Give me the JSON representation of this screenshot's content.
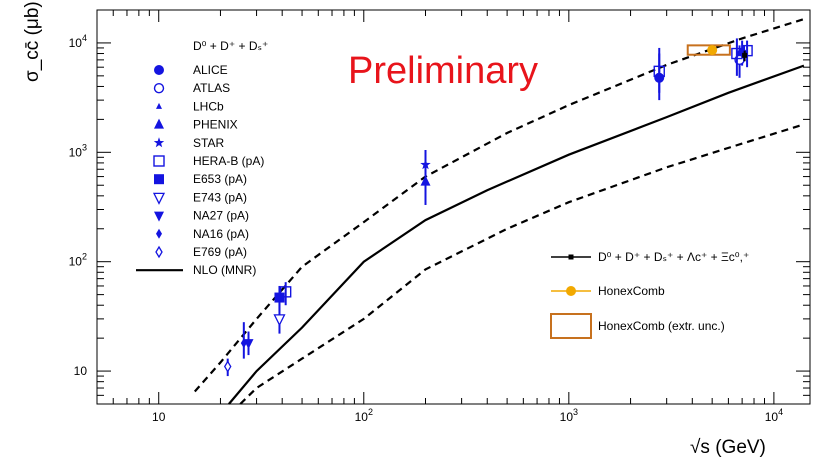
{
  "chart_data": {
    "type": "scatter",
    "title": "",
    "xlabel": "√s (GeV)",
    "ylabel": "σ_cc̄ (μb)",
    "x_scale": "log",
    "y_scale": "log",
    "xlim": [
      5,
      15000
    ],
    "ylim": [
      5,
      20000
    ],
    "x_ticks": [
      {
        "value": 10,
        "label": "10"
      },
      {
        "value": 100,
        "label": "10",
        "exp": "2"
      },
      {
        "value": 1000,
        "label": "10",
        "exp": "3"
      },
      {
        "value": 10000,
        "label": "10",
        "exp": "4"
      }
    ],
    "y_ticks": [
      {
        "value": 10,
        "label": "10"
      },
      {
        "value": 100,
        "label": "10",
        "exp": "2"
      },
      {
        "value": 1000,
        "label": "10",
        "exp": "3"
      },
      {
        "value": 10000,
        "label": "10",
        "exp": "4"
      }
    ],
    "annotation": "Preliminary",
    "legend_left_header": "D⁰ + D⁺ + Dₛ⁺",
    "legend_right_first": "D⁰ + D⁺ + Dₛ⁺ + Λc⁺ + Ξc⁰,⁺",
    "colors": {
      "blue": "#1414e0",
      "orange": "#f2a900",
      "box": "#c7711e",
      "curve": "#000000"
    },
    "series": [
      {
        "name": "ALICE",
        "marker": "circle-filled",
        "points": [
          {
            "x": 2760,
            "y": 4800,
            "ylo": 3000,
            "yhi": 8000
          },
          {
            "x": 7000,
            "y": 8000,
            "ylo": 6200,
            "yhi": 10500
          }
        ]
      },
      {
        "name": "ATLAS",
        "marker": "circle-open",
        "points": [
          {
            "x": 6800,
            "y": 7000,
            "ylo": 4800,
            "yhi": 9500
          }
        ]
      },
      {
        "name": "LHCb",
        "marker": "triangle-small",
        "points": [
          {
            "x": 7150,
            "y": 8000,
            "ylo": 6800,
            "yhi": 9500
          }
        ]
      },
      {
        "name": "PHENIX",
        "marker": "triangle-filled",
        "points": [
          {
            "x": 200,
            "y": 540,
            "ylo": 330,
            "yhi": 800
          }
        ]
      },
      {
        "name": "STAR",
        "marker": "star",
        "points": [
          {
            "x": 200,
            "y": 770,
            "ylo": 500,
            "yhi": 1050
          }
        ]
      },
      {
        "name": "HERA-B (pA)",
        "marker": "square-open",
        "points": [
          {
            "x": 41.6,
            "y": 53,
            "ylo": 40,
            "yhi": 65
          },
          {
            "x": 2760,
            "y": 5500,
            "ylo": 3500,
            "yhi": 9000
          },
          {
            "x": 6600,
            "y": 8000,
            "ylo": 5000,
            "yhi": 11000
          },
          {
            "x": 7400,
            "y": 8500,
            "ylo": 6000,
            "yhi": 10500
          }
        ]
      },
      {
        "name": "E653 (pA)",
        "marker": "square-filled",
        "points": [
          {
            "x": 38.8,
            "y": 47,
            "ylo": 35,
            "yhi": 60
          }
        ]
      },
      {
        "name": "E743 (pA)",
        "marker": "triangle-down-open",
        "points": [
          {
            "x": 38.8,
            "y": 30,
            "ylo": 22,
            "yhi": 42
          }
        ]
      },
      {
        "name": "NA27 (pA)",
        "marker": "triangle-down-filled",
        "points": [
          {
            "x": 27.4,
            "y": 18,
            "ylo": 14,
            "yhi": 23
          }
        ]
      },
      {
        "name": "NA16 (pA)",
        "marker": "diamond-filled",
        "points": [
          {
            "x": 26.0,
            "y": 18,
            "ylo": 13,
            "yhi": 28
          }
        ]
      },
      {
        "name": "E769 (pA)",
        "marker": "diamond-open",
        "points": [
          {
            "x": 21.7,
            "y": 11,
            "ylo": 9,
            "yhi": 13
          }
        ]
      },
      {
        "name": "NLO (MNR)",
        "marker": "line-solid",
        "curve": [
          [
            22,
            5
          ],
          [
            30,
            10
          ],
          [
            50,
            25
          ],
          [
            100,
            100
          ],
          [
            200,
            240
          ],
          [
            400,
            450
          ],
          [
            1000,
            950
          ],
          [
            3000,
            2100
          ],
          [
            6000,
            3500
          ],
          [
            14000,
            6200
          ]
        ]
      },
      {
        "name": "",
        "marker": "line-dashed",
        "curve": [
          [
            15,
            6.5
          ],
          [
            20,
            12
          ],
          [
            30,
            30
          ],
          [
            50,
            90
          ],
          [
            100,
            230
          ],
          [
            200,
            600
          ],
          [
            500,
            1500
          ],
          [
            1000,
            2700
          ],
          [
            3000,
            6300
          ],
          [
            7000,
            11000
          ],
          [
            14000,
            16500
          ]
        ]
      },
      {
        "name": "",
        "marker": "line-dashed",
        "curve": [
          [
            25,
            5
          ],
          [
            30,
            7
          ],
          [
            50,
            13
          ],
          [
            100,
            30
          ],
          [
            200,
            85
          ],
          [
            500,
            200
          ],
          [
            1000,
            350
          ],
          [
            3000,
            730
          ],
          [
            7000,
            1200
          ],
          [
            14000,
            1800
          ]
        ]
      },
      {
        "name": "D⁰ + D⁺ + Dₛ⁺ + Λc⁺ + Ξc⁰,⁺",
        "marker": "square-small-line",
        "points": [
          {
            "x": 7200,
            "y": 7700,
            "ylo": 6800,
            "yhi": 8500
          }
        ]
      },
      {
        "name": "HonexComb",
        "marker": "circle-orange",
        "points": [
          {
            "x": 5000,
            "y": 8600,
            "ylo": 8600,
            "yhi": 8600
          }
        ]
      },
      {
        "name": "HonexComb (extr. unc.)",
        "marker": "box-orange",
        "boxes": [
          {
            "x0": 3800,
            "x1": 6100,
            "y0": 7800,
            "y1": 9500
          }
        ]
      }
    ]
  }
}
